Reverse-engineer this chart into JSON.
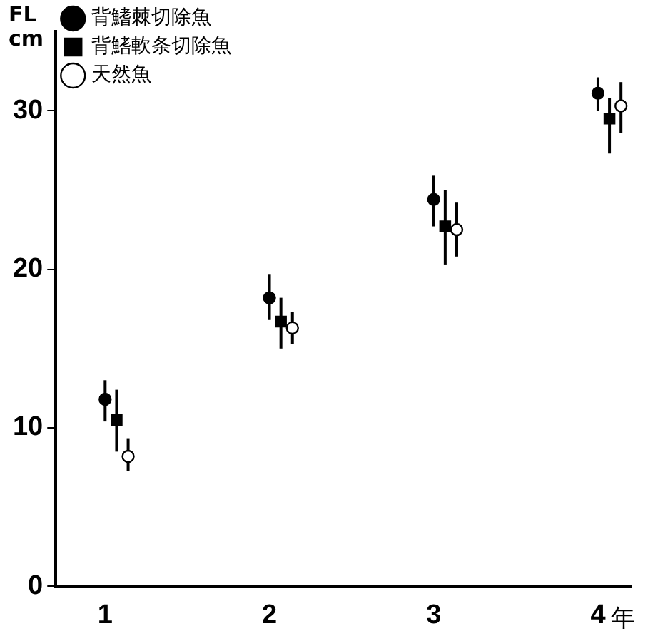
{
  "chart_data": {
    "type": "scatter",
    "ylabel": "FL cm",
    "xlabel": "年",
    "xlim": [
      0.7,
      4.2
    ],
    "xticks": [
      1,
      2,
      3,
      4
    ],
    "ylim": [
      0,
      35
    ],
    "yticks": [
      0,
      10,
      20,
      30
    ],
    "grid": false,
    "legend": "top left",
    "series": [
      {
        "name": "背鰭棘切除魚",
        "color": "#000000",
        "marker": "circle",
        "x": [
          1,
          2,
          3,
          4
        ],
        "values": [
          11.8,
          18.2,
          24.4,
          31.1
        ],
        "errors": [
          [
            10.4,
            13.0
          ],
          [
            16.8,
            19.7
          ],
          [
            22.7,
            25.9
          ],
          [
            30.0,
            32.1
          ]
        ]
      },
      {
        "name": "背鰭軟条切除魚",
        "color": "#000000",
        "marker": "square",
        "x": [
          1.07,
          2.07,
          3.07,
          4.07
        ],
        "values": [
          10.5,
          16.7,
          22.7,
          29.5
        ],
        "errors": [
          [
            8.5,
            12.4
          ],
          [
            15.0,
            18.2
          ],
          [
            20.3,
            25.0
          ],
          [
            27.3,
            30.8
          ]
        ]
      },
      {
        "name": "天然魚",
        "color": "#000000",
        "marker": "open circle",
        "x": [
          1.14,
          2.14,
          3.14,
          4.14
        ],
        "values": [
          8.2,
          16.3,
          22.5,
          30.3
        ],
        "errors": [
          [
            7.3,
            9.3
          ],
          [
            15.3,
            17.3
          ],
          [
            20.8,
            24.2
          ],
          [
            28.6,
            31.8
          ]
        ]
      }
    ]
  }
}
